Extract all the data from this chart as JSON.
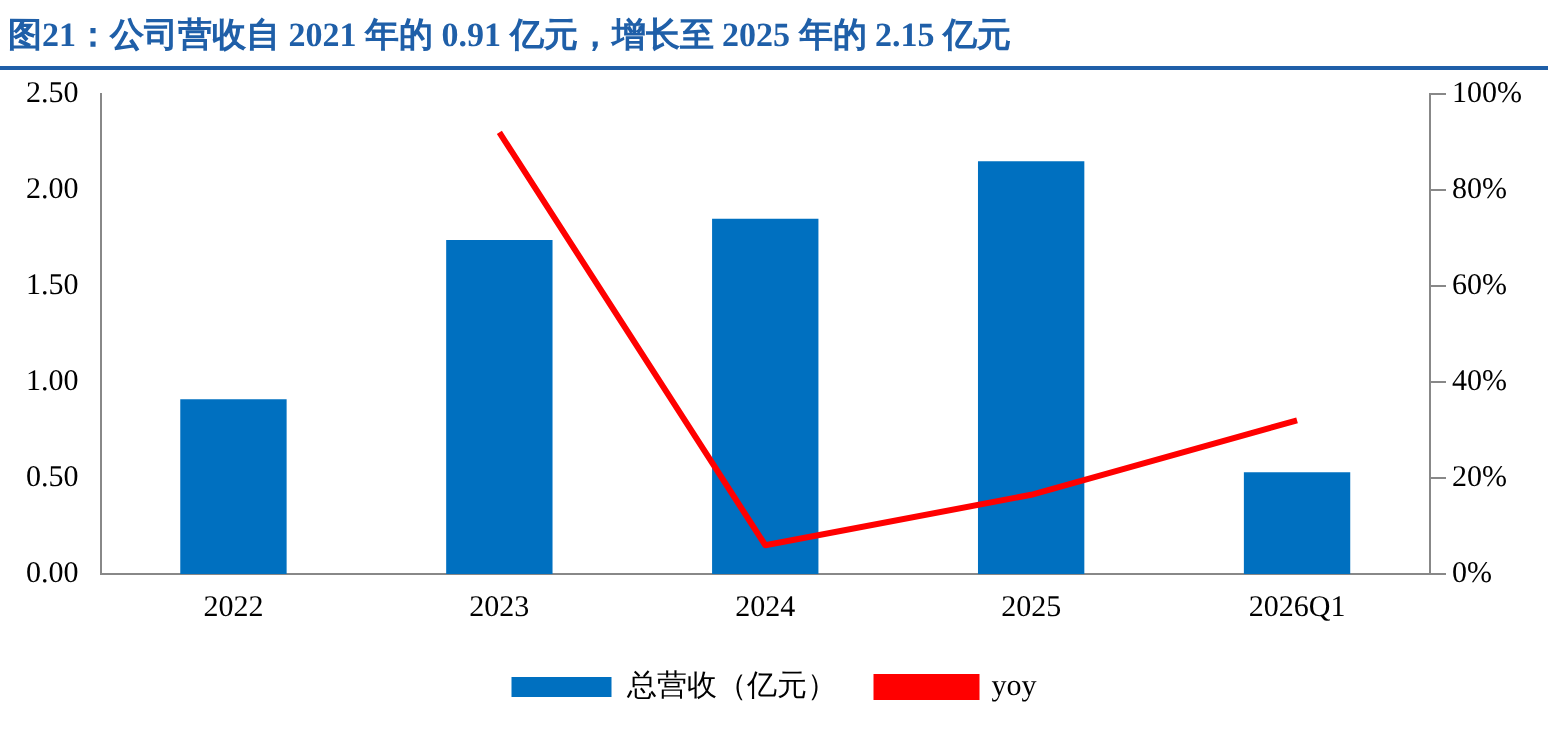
{
  "chart_data": {
    "type": "bar",
    "title": "图21：公司营收自 2021 年的 0.91 亿元，增长至 2025 年的 2.15 亿元",
    "categories": [
      "2022",
      "2023",
      "2024",
      "2025",
      "2026Q1"
    ],
    "series": [
      {
        "name": "总营收（亿元）",
        "color": "#0070c0",
        "values": [
          0.91,
          1.74,
          1.85,
          2.15,
          0.53
        ]
      },
      {
        "name": "yoy",
        "type": "line",
        "axis": "y2",
        "color": "#ff0000",
        "values": [
          null,
          92,
          6,
          16.5,
          32
        ]
      }
    ],
    "ylim": [
      0,
      2.5
    ],
    "yticks": [
      {
        "value": 0,
        "label": "0.00"
      },
      {
        "value": 0.5,
        "label": "0.50"
      },
      {
        "value": 1,
        "label": "1.00"
      },
      {
        "value": 1.5,
        "label": "1.50"
      },
      {
        "value": 2,
        "label": "2.00"
      },
      {
        "value": 2.5,
        "label": "2.50"
      }
    ],
    "y2lim": [
      0,
      100
    ],
    "y2ticks": [
      {
        "value": 0,
        "label": "0%"
      },
      {
        "value": 20,
        "label": "20%"
      },
      {
        "value": 40,
        "label": "40%"
      },
      {
        "value": 60,
        "label": "60%"
      },
      {
        "value": 80,
        "label": "80%"
      },
      {
        "value": 100,
        "label": "100%"
      }
    ],
    "legend": "bottom",
    "marker": "none",
    "line_style": "solid"
  }
}
